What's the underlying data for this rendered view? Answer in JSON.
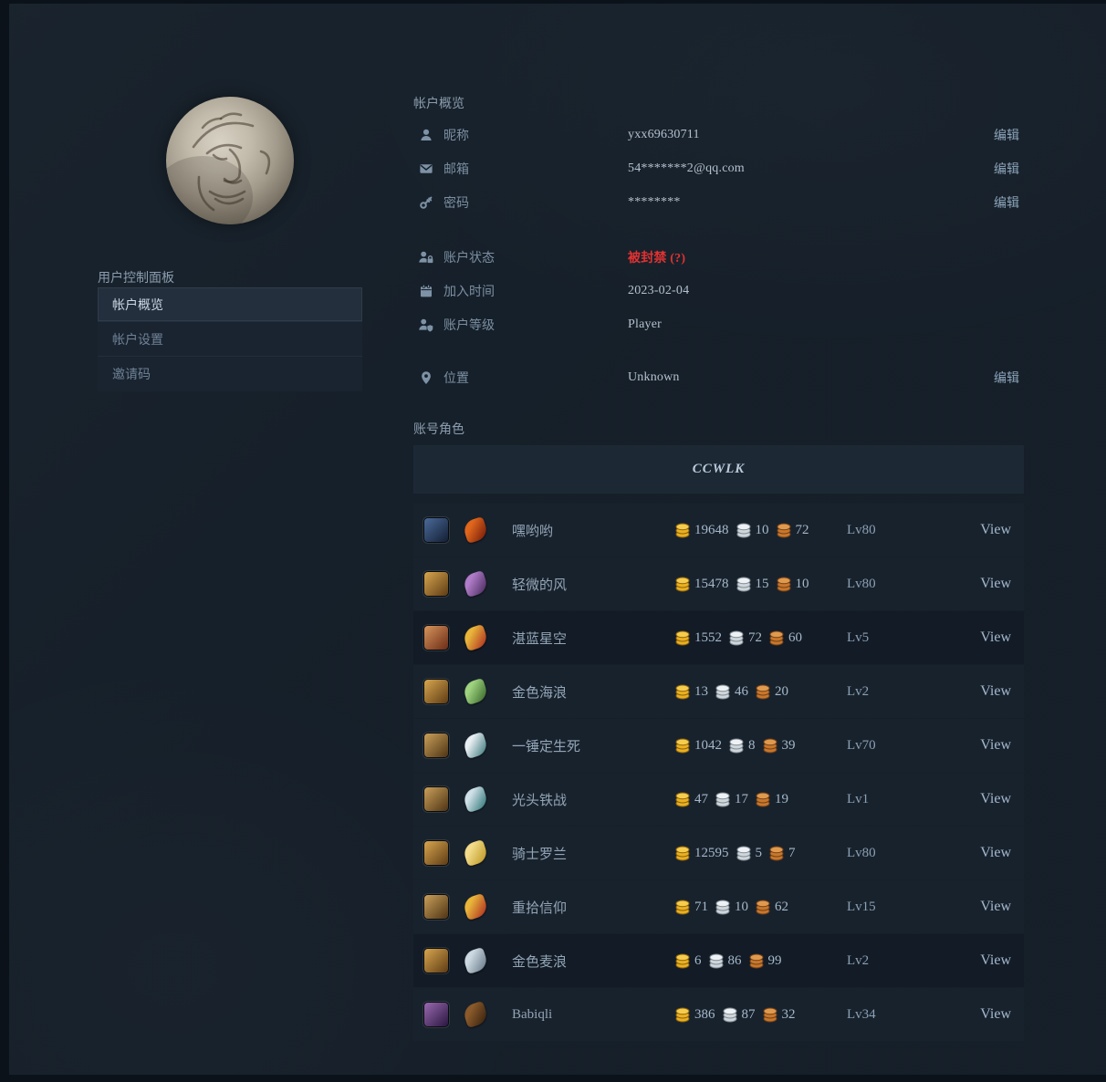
{
  "colors": {
    "page_bg": "#0b121a",
    "panel_bg": "#16202a",
    "accent_red": "#e03232",
    "gold": "#eab020",
    "silver": "#cfd6db",
    "copper": "#c8772b"
  },
  "sidebar": {
    "title": "用户控制面板",
    "items": [
      {
        "label": "帐户概览",
        "active": true
      },
      {
        "label": "帐户设置",
        "active": false
      },
      {
        "label": "邀请码",
        "active": false
      }
    ]
  },
  "overview": {
    "title": "帐户概览",
    "edit_label": "编辑",
    "rows": [
      {
        "icon": "user-icon",
        "label": "昵称",
        "value": "yxx69630711",
        "edit": true
      },
      {
        "icon": "mail-icon",
        "label": "邮箱",
        "value": "54*******2@qq.com",
        "edit": true
      },
      {
        "icon": "key-icon",
        "label": "密码",
        "value": "********",
        "edit": true
      },
      {
        "icon": "user-lock-icon",
        "label": "账户状态",
        "value": "被封禁 (?)",
        "status": "banned",
        "gap_before": true
      },
      {
        "icon": "calendar-icon",
        "label": "加入时间",
        "value": "2023-02-04"
      },
      {
        "icon": "user-level-icon",
        "label": "账户等级",
        "value": "Player"
      },
      {
        "icon": "location-pin-icon",
        "label": "位置",
        "value": "Unknown",
        "edit": true,
        "gap_before": true
      }
    ]
  },
  "characters": {
    "title": "账号角色",
    "realm": "CCWLK",
    "view_label": "View",
    "rows": [
      {
        "name": "嘿哟哟",
        "gold": 19648,
        "silver": 10,
        "copper": 72,
        "level": "Lv80",
        "race_icon": "deathknight-portrait",
        "class_icon": "horde-crest",
        "race_colors": [
          "#4a6a9a",
          "#141f33"
        ],
        "class_colors": [
          "#e0661c",
          "#6a1408"
        ]
      },
      {
        "name": "轻微的风",
        "gold": 15478,
        "silver": 15,
        "copper": 10,
        "level": "Lv80",
        "race_icon": "bloodelf-female-portrait",
        "class_icon": "dragonhawk-pet",
        "race_colors": [
          "#d8a64f",
          "#5e3c14"
        ],
        "class_colors": [
          "#b07cc8",
          "#3f2353"
        ]
      },
      {
        "name": "湛蓝星空",
        "gold": 1552,
        "silver": 72,
        "copper": 60,
        "level": "Lv5",
        "race_icon": "human-male-portrait",
        "class_icon": "scarlet-tabard",
        "race_colors": [
          "#d8955c",
          "#6a2c16"
        ],
        "class_colors": [
          "#e8b53a",
          "#a81f1f"
        ]
      },
      {
        "name": "金色海浪",
        "gold": 13,
        "silver": 46,
        "copper": 20,
        "level": "Lv2",
        "race_icon": "bloodelf-female-portrait",
        "class_icon": "rogue-daggers",
        "race_colors": [
          "#d8a64f",
          "#5e3c14"
        ],
        "class_colors": [
          "#9fd37f",
          "#2f5e23"
        ]
      },
      {
        "name": "一锤定生死",
        "gold": 1042,
        "silver": 8,
        "copper": 39,
        "level": "Lv70",
        "race_icon": "human-male-portrait",
        "class_icon": "shaman-axe",
        "race_colors": [
          "#caa05a",
          "#4e3414"
        ],
        "class_colors": [
          "#e8eef2",
          "#2e6f72"
        ]
      },
      {
        "name": "光头铁战",
        "gold": 47,
        "silver": 17,
        "copper": 19,
        "level": "Lv1",
        "race_icon": "human-male-portrait",
        "class_icon": "warrior-sword",
        "race_colors": [
          "#caa05a",
          "#4e3414"
        ],
        "class_colors": [
          "#cfe0e8",
          "#1f6b6b"
        ]
      },
      {
        "name": "骑士罗兰",
        "gold": 12595,
        "silver": 5,
        "copper": 7,
        "level": "Lv80",
        "race_icon": "bloodelf-female-portrait",
        "class_icon": "paladin-libram",
        "race_colors": [
          "#d8a64f",
          "#5e3c14"
        ],
        "class_colors": [
          "#f2dc8a",
          "#b89018"
        ]
      },
      {
        "name": "重拾信仰",
        "gold": 71,
        "silver": 10,
        "copper": 62,
        "level": "Lv15",
        "race_icon": "human-male-portrait",
        "class_icon": "scarlet-tabard",
        "race_colors": [
          "#caa05a",
          "#4e3414"
        ],
        "class_colors": [
          "#e8b53a",
          "#a81f1f"
        ]
      },
      {
        "name": "金色麦浪",
        "gold": 6,
        "silver": 86,
        "copper": 99,
        "level": "Lv2",
        "race_icon": "bloodelf-female-portrait",
        "class_icon": "frost-sigil",
        "race_colors": [
          "#d8a64f",
          "#5e3c14"
        ],
        "class_colors": [
          "#cdd9e2",
          "#5d6f7f"
        ]
      },
      {
        "name": "Babiqli",
        "gold": 386,
        "silver": 87,
        "copper": 32,
        "level": "Lv34",
        "race_icon": "nightelf-female-portrait",
        "class_icon": "hunter-bow",
        "race_colors": [
          "#9a6ab0",
          "#2a1640"
        ],
        "class_colors": [
          "#8a5a2a",
          "#2e1c0c"
        ]
      }
    ]
  }
}
